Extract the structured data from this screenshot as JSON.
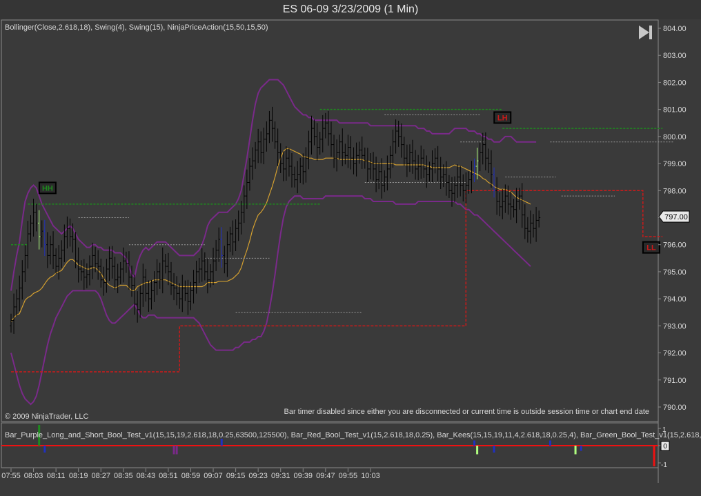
{
  "window": {
    "title": "ES 06-09  3/23/2009 (1 Min)"
  },
  "price_panel": {
    "indicators_label": "Bollinger(Close,2.618,18), Swing(4), Swing(15), NinjaPriceAction(15,50,15,50)",
    "copyright": "© 2009 NinjaTrader, LLC",
    "bar_timer_msg": "Bar timer disabled since either you are disconnected or current time is outside session time or chart end date",
    "last_price": "797.00",
    "y_ticks": [
      "804.00",
      "803.00",
      "802.00",
      "801.00",
      "800.00",
      "799.00",
      "798.00",
      "797.00",
      "796.00",
      "795.00",
      "794.00",
      "793.00",
      "792.00",
      "791.00",
      "790.00"
    ],
    "markers": [
      {
        "label": "HH",
        "color": "#1e8a1e"
      },
      {
        "label": "LH",
        "color": "#cc1a1a"
      },
      {
        "label": "LL",
        "color": "#cc1a1a"
      }
    ],
    "play_icon": "skip-to-end-icon"
  },
  "indicator_panel": {
    "label": "Bar_Purple_Long_and_Short_Bool_Test_v1(15,15,19,2.618,18,0.25,63500,125500), Bar_Red_Bool_Test_v1(15,2.618,18,0.25), Bar_Kees(15,15,19,11,4,2.618,18,0.25,4), Bar_Green_Bool_Test_v1(15,2.618,1",
    "y_ticks": [
      "1",
      "0",
      "-1"
    ],
    "zero_label": "0"
  },
  "x_axis": {
    "ticks": [
      "07:55",
      "08:03",
      "08:11",
      "08:19",
      "08:27",
      "08:35",
      "08:43",
      "08:51",
      "08:59",
      "09:07",
      "09:15",
      "09:23",
      "09:31",
      "09:39",
      "09:47",
      "09:55",
      "10:03"
    ]
  },
  "colors": {
    "background": "#3a3a3a",
    "bars": "#000000",
    "bollinger": "#7a2a8a",
    "middle_band": "#d4a030",
    "resistance": "#1e8a1e",
    "support": "#cc1a1a",
    "swing": "#9a9a9a",
    "axis_text": "#d8d8d8"
  },
  "chart_data": {
    "type": "ohlc",
    "title": "ES 06-09  3/23/2009 (1 Min)",
    "ylim": [
      789.6,
      804.3
    ],
    "y_ticks": [
      804,
      803,
      802,
      801,
      800,
      799,
      798,
      797,
      796,
      795,
      794,
      793,
      792,
      791,
      790
    ],
    "x_ticks": [
      "07:55",
      "08:03",
      "08:11",
      "08:19",
      "08:27",
      "08:35",
      "08:43",
      "08:51",
      "08:59",
      "09:07",
      "09:15",
      "09:23",
      "09:31",
      "09:39",
      "09:47",
      "09:55",
      "10:03"
    ],
    "closes": [
      793.2,
      793.7,
      794.0,
      794.4,
      795.0,
      795.6,
      796.4,
      796.8,
      797.2,
      796.8,
      796.3,
      796.5,
      796.0,
      795.6,
      796.0,
      795.6,
      795.2,
      795.5,
      795.8,
      796.3,
      796.6,
      796.3,
      796.2,
      795.4,
      795.1,
      795.0,
      794.8,
      794.9,
      795.2,
      795.6,
      795.3,
      795.2,
      794.7,
      794.6,
      795.1,
      795.5,
      795.2,
      794.7,
      794.8,
      795.1,
      795.4,
      795.3,
      794.8,
      794.5,
      793.8,
      793.6,
      794.2,
      794.8,
      794.2,
      794.0,
      794.3,
      794.6,
      795.0,
      794.7,
      795.4,
      795.2,
      795.0,
      794.5,
      794.4,
      794.2,
      794.0,
      794.4,
      794.2,
      793.9,
      794.3,
      794.6,
      795.0,
      795.1,
      795.4,
      795.0,
      794.7,
      795.0,
      795.4,
      795.8,
      796.2,
      795.6,
      795.3,
      796.0,
      796.4,
      796.1,
      796.6,
      796.8,
      797.2,
      797.8,
      798.3,
      798.9,
      799.1,
      799.5,
      799.8,
      799.4,
      799.9,
      800.1,
      800.6,
      800.3,
      799.8,
      799.4,
      799.0,
      798.8,
      799.2,
      798.9,
      798.6,
      798.4,
      798.6,
      798.9,
      798.7,
      799.2,
      799.8,
      800.3,
      800.0,
      799.6,
      799.9,
      800.3,
      800.5,
      800.1,
      799.7,
      799.2,
      799.4,
      799.8,
      799.4,
      799.3,
      799.6,
      799.2,
      799.0,
      799.3,
      799.5,
      799.3,
      799.1,
      798.8,
      799.0,
      798.8,
      798.4,
      798.7,
      798.2,
      798.5,
      798.8,
      799.3,
      799.8,
      800.2,
      800.0,
      799.7,
      799.2,
      799.0,
      799.4,
      799.1,
      798.8,
      798.9,
      799.2,
      798.8,
      798.6,
      798.8,
      799.0,
      799.2,
      798.8,
      798.5,
      798.6,
      798.3,
      798.0,
      797.9,
      798.2,
      798.5,
      798.2,
      798.0,
      798.2,
      798.4,
      798.6,
      798.9,
      799.1,
      799.4,
      799.7,
      799.2,
      799.0,
      798.6,
      798.0,
      797.6,
      797.4,
      797.6,
      797.8,
      797.5,
      797.4,
      797.3,
      797.6,
      797.8,
      797.1,
      796.6,
      796.5,
      796.8,
      796.6,
      796.9,
      797.0
    ],
    "bollinger_upper": [
      794.3,
      795.0,
      795.6,
      796.1,
      796.9,
      797.6,
      797.9,
      798.1,
      798.2,
      798.1,
      797.8,
      797.5,
      797.3,
      797.1,
      796.9,
      796.7,
      796.6,
      796.5,
      796.4,
      796.5,
      796.6,
      796.7,
      796.6,
      796.4,
      796.2,
      796.1,
      796.0,
      795.9,
      795.9,
      796.0,
      796.0,
      795.9,
      795.9,
      795.8,
      795.8,
      795.8,
      795.8,
      795.7,
      795.7,
      795.7,
      795.6,
      795.5,
      795.2,
      794.9,
      794.8,
      795.3,
      795.6,
      795.8,
      795.9,
      795.8,
      795.9,
      796.0,
      796.1,
      796.1,
      796.1,
      796.1,
      796.0,
      795.9,
      795.8,
      795.7,
      795.6,
      795.6,
      795.6,
      795.6,
      795.6,
      795.6,
      795.7,
      795.8,
      796.0,
      796.3,
      796.7,
      796.9,
      797.0,
      797.1,
      797.2,
      797.2,
      797.2,
      797.2,
      797.3,
      797.4,
      797.5,
      797.7,
      798.0,
      798.6,
      799.2,
      799.9,
      800.6,
      801.2,
      801.6,
      801.8,
      801.9,
      802.0,
      802.1,
      802.1,
      802.1,
      802.1,
      802.0,
      801.9,
      801.7,
      801.5,
      801.3,
      801.1,
      801.0,
      800.9,
      800.8,
      800.8,
      800.7,
      800.7,
      800.6,
      800.6,
      800.6,
      800.6,
      800.6,
      800.6,
      800.6,
      800.6,
      800.6,
      800.5,
      800.5,
      800.5,
      800.5,
      800.5,
      800.5,
      800.5,
      800.5,
      800.5,
      800.5,
      800.5,
      800.4,
      800.4,
      800.4,
      800.4,
      800.4,
      800.4,
      800.4,
      800.4,
      800.4,
      800.4,
      800.4,
      800.4,
      800.4,
      800.4,
      800.4,
      800.4,
      800.4,
      800.3,
      800.3,
      800.3,
      800.2,
      800.2,
      800.1,
      800.1,
      800.1,
      800.1,
      800.1,
      800.1,
      800.1,
      800.2,
      800.3,
      800.3,
      800.3,
      800.3,
      800.3,
      800.2,
      800.2,
      800.2,
      800.1,
      800.1,
      800.0,
      800.0,
      799.9,
      799.9,
      799.8,
      799.8,
      799.8,
      799.9,
      800.0,
      800.0,
      800.0,
      799.9,
      799.8,
      799.8,
      799.8,
      799.8,
      799.8,
      799.8,
      799.8,
      799.8
    ],
    "bollinger_lower": [
      792.0,
      791.6,
      791.2,
      790.8,
      790.5,
      790.3,
      790.2,
      790.1,
      790.2,
      790.4,
      790.8,
      791.3,
      791.8,
      792.3,
      792.7,
      793.0,
      793.3,
      793.5,
      793.7,
      793.9,
      794.1,
      794.2,
      794.3,
      794.3,
      794.3,
      794.3,
      794.3,
      794.3,
      794.3,
      794.3,
      794.3,
      794.2,
      794.0,
      793.7,
      793.4,
      793.2,
      793.1,
      793.1,
      793.2,
      793.3,
      793.4,
      793.5,
      793.6,
      793.7,
      793.8,
      793.6,
      793.4,
      793.3,
      793.3,
      793.4,
      793.4,
      793.4,
      793.3,
      793.3,
      793.3,
      793.3,
      793.3,
      793.3,
      793.3,
      793.3,
      793.3,
      793.3,
      793.3,
      793.3,
      793.3,
      793.3,
      793.2,
      793.1,
      792.9,
      792.7,
      792.5,
      792.3,
      792.2,
      792.1,
      792.1,
      792.1,
      792.1,
      792.1,
      792.1,
      792.1,
      792.2,
      792.2,
      792.3,
      792.4,
      792.4,
      792.4,
      792.5,
      792.5,
      792.6,
      792.6,
      792.8,
      793.1,
      793.6,
      794.2,
      794.9,
      795.7,
      796.4,
      797.0,
      797.4,
      797.6,
      797.7,
      797.8,
      797.8,
      797.8,
      797.7,
      797.7,
      797.7,
      797.7,
      797.7,
      797.7,
      797.7,
      797.7,
      797.8,
      797.8,
      797.8,
      797.8,
      797.8,
      797.8,
      797.8,
      797.8,
      797.8,
      797.8,
      797.8,
      797.8,
      797.8,
      797.8,
      797.7,
      797.7,
      797.7,
      797.6,
      797.6,
      797.6,
      797.6,
      797.6,
      797.6,
      797.6,
      797.6,
      797.5,
      797.5,
      797.5,
      797.5,
      797.5,
      797.5,
      797.5,
      797.5,
      797.6,
      797.6,
      797.6,
      797.6,
      797.6,
      797.6,
      797.6,
      797.6,
      797.6,
      797.6,
      797.6,
      797.6,
      797.6,
      797.6,
      797.5,
      797.5,
      797.4,
      797.3,
      797.3,
      797.2,
      797.1,
      797.1,
      797.0,
      796.9,
      796.8,
      796.7,
      796.6,
      796.5,
      796.4,
      796.3,
      796.2,
      796.1,
      796.0,
      795.9,
      795.8,
      795.7,
      795.6,
      795.5,
      795.4,
      795.3,
      795.2
    ],
    "resistance_levels": [
      {
        "start": 0,
        "end": 6,
        "value": 796.0
      },
      {
        "start": 6,
        "end": 110,
        "value": 797.5
      },
      {
        "start": 110,
        "end": 175,
        "value": 801.0
      },
      {
        "start": 175,
        "end": 232,
        "value": 800.3
      }
    ],
    "support_steps": [
      {
        "start": 0,
        "end": 60,
        "value": 791.3
      },
      {
        "start": 60,
        "end": 162,
        "value": 793.0
      },
      {
        "start": 162,
        "end": 225,
        "value": 798.0
      },
      {
        "start": 225,
        "end": 232,
        "value": 796.3
      }
    ],
    "swing_levels": [
      {
        "start": 24,
        "end": 42,
        "value": 797.0
      },
      {
        "start": 42,
        "end": 69,
        "value": 796.0
      },
      {
        "start": 69,
        "end": 92,
        "value": 795.5
      },
      {
        "start": 80,
        "end": 125,
        "value": 793.5
      },
      {
        "start": 126,
        "end": 162,
        "value": 798.3
      },
      {
        "start": 133,
        "end": 167,
        "value": 800.8
      },
      {
        "start": 160,
        "end": 169,
        "value": 799.8
      },
      {
        "start": 176,
        "end": 194,
        "value": 798.5
      },
      {
        "start": 192,
        "end": 236,
        "value": 799.8
      },
      {
        "start": 196,
        "end": 215,
        "value": 797.8
      }
    ],
    "marker_positions": [
      {
        "label": "HH",
        "index": 13,
        "price": 798.1
      },
      {
        "label": "LH",
        "index": 175,
        "price": 800.7
      },
      {
        "label": "LL",
        "index": 228,
        "price": 795.9
      }
    ],
    "indicator_panel": {
      "ylim": [
        -1.2,
        1.2
      ],
      "y_ticks": [
        1,
        0,
        -1
      ],
      "signals": [
        {
          "index": 10,
          "value": 1.2,
          "color": "#1e8a1e"
        },
        {
          "index": 12,
          "value": -0.4,
          "color": "#2030c0"
        },
        {
          "index": 58,
          "value": -0.5,
          "color": "#7a2a8a"
        },
        {
          "index": 59,
          "value": -0.5,
          "color": "#7a2a8a"
        },
        {
          "index": 75,
          "value": 0.4,
          "color": "#2030c0"
        },
        {
          "index": 165,
          "value": 0.3,
          "color": "#2030c0"
        },
        {
          "index": 166,
          "value": -0.5,
          "color": "#b0ff80"
        },
        {
          "index": 172,
          "value": -0.4,
          "color": "#2030c0"
        },
        {
          "index": 192,
          "value": 0.3,
          "color": "#2030c0"
        },
        {
          "index": 201,
          "value": -0.5,
          "color": "#b0ff80"
        },
        {
          "index": 203,
          "value": -0.3,
          "color": "#2030c0"
        },
        {
          "index": 229,
          "value": -1.2,
          "color": "#ee1111"
        }
      ]
    }
  }
}
